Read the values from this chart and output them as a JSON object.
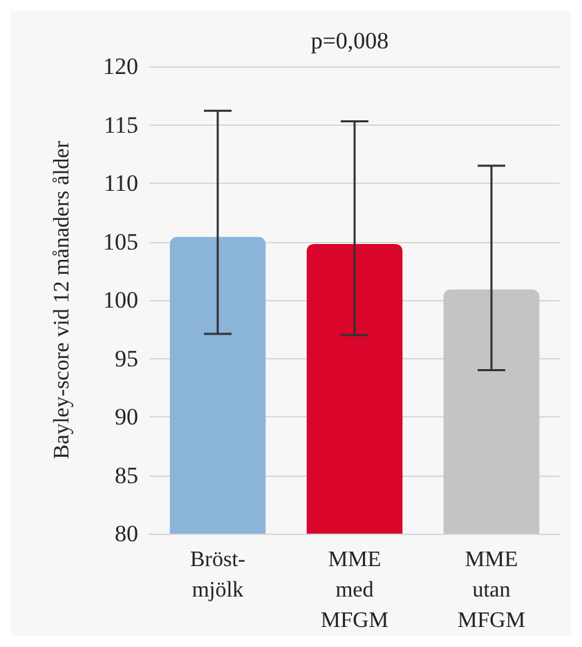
{
  "chart_data": {
    "type": "bar",
    "title": "p=0,008",
    "ylabel": "Bayley-score vid 12 månaders ålder",
    "categories": [
      "Bröst-\nmjölk",
      "MME\nmed\nMFGM",
      "MME\nutan\nMFGM"
    ],
    "values": [
      105.4,
      104.8,
      100.9
    ],
    "colors": [
      "#8ab4d8",
      "#d9052b",
      "#c4c4c4"
    ],
    "errors": [
      [
        97.1,
        116.2
      ],
      [
        97.0,
        115.3
      ],
      [
        94.0,
        111.5
      ]
    ],
    "ylim": [
      80,
      120
    ],
    "yticks": [
      80,
      85,
      90,
      95,
      100,
      105,
      110,
      115,
      120
    ],
    "grid": "y"
  }
}
